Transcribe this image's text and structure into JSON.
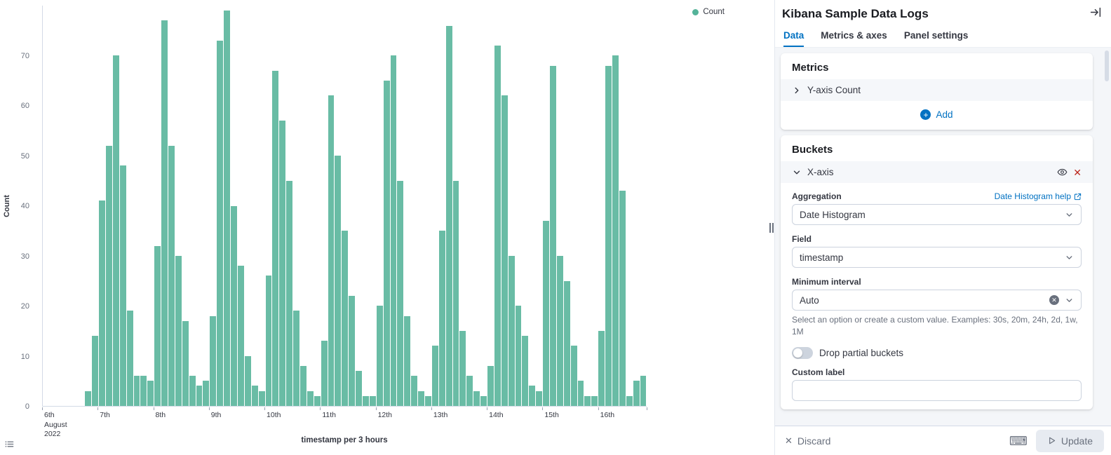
{
  "chart_data": {
    "type": "bar",
    "title": "",
    "xlabel": "timestamp per 3 hours",
    "ylabel": "Count",
    "series_name": "Count",
    "bar_color": "#54B399",
    "ylim": [
      0,
      80
    ],
    "yticks": [
      0,
      10,
      20,
      30,
      40,
      50,
      60,
      70
    ],
    "xticks": [
      "6th\nAugust\n2022",
      "7th",
      "8th",
      "9th",
      "10th",
      "11th",
      "12th",
      "13th",
      "14th",
      "15th",
      "16th"
    ],
    "buckets_per_day": 8,
    "interval": "3 hours",
    "values": [
      0,
      0,
      0,
      0,
      0,
      0,
      3,
      14,
      41,
      52,
      70,
      48,
      19,
      6,
      6,
      5,
      32,
      77,
      52,
      30,
      17,
      6,
      4,
      5,
      18,
      73,
      79,
      40,
      28,
      10,
      4,
      3,
      26,
      67,
      57,
      45,
      19,
      8,
      3,
      2,
      13,
      62,
      50,
      35,
      22,
      7,
      2,
      2,
      20,
      65,
      70,
      45,
      18,
      6,
      3,
      2,
      12,
      35,
      76,
      45,
      15,
      6,
      3,
      2,
      8,
      72,
      62,
      30,
      20,
      14,
      4,
      3,
      37,
      68,
      30,
      25,
      12,
      5,
      2,
      2,
      15,
      68,
      70,
      43,
      2,
      5,
      6
    ],
    "legend_position": "top-right",
    "grid": false
  },
  "panel": {
    "title": "Kibana Sample Data Logs",
    "tabs": [
      {
        "label": "Data",
        "active": true
      },
      {
        "label": "Metrics & axes",
        "active": false
      },
      {
        "label": "Panel settings",
        "active": false
      }
    ],
    "metrics": {
      "heading": "Metrics",
      "row_label": "Y-axis Count",
      "add_label": "Add"
    },
    "buckets": {
      "heading": "Buckets",
      "row_label": "X-axis",
      "aggregation_label": "Aggregation",
      "aggregation_help": "Date Histogram help",
      "aggregation_value": "Date Histogram",
      "field_label": "Field",
      "field_value": "timestamp",
      "min_interval_label": "Minimum interval",
      "min_interval_value": "Auto",
      "min_interval_help": "Select an option or create a custom value. Examples: 30s, 20m, 24h, 2d, 1w, 1M",
      "toggle_label": "Drop partial buckets",
      "toggle_state": "off",
      "custom_label_label": "Custom label",
      "custom_label_value": ""
    },
    "footer": {
      "discard_label": "Discard",
      "update_label": "Update"
    }
  },
  "colors": {
    "bar_green": "#54B399",
    "accent_blue": "#0071c2",
    "danger_red": "#BD271E",
    "text": "#343741",
    "subdued": "#69707d"
  }
}
